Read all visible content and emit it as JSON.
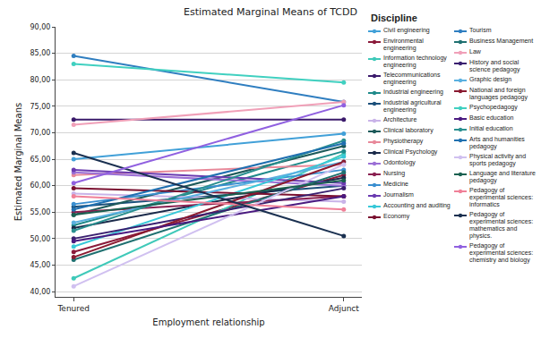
{
  "chart_data": {
    "type": "line",
    "title": "Estimated Marginal Means of TCDD",
    "x_label": "Employment relationship",
    "y_label": "Estimated Marginal Means",
    "legend_title": "Discipline",
    "legend": "right",
    "grid": true,
    "marker": "circle",
    "categories": [
      "Tenured",
      "Adjunct"
    ],
    "ylim": [
      39,
      90
    ],
    "yticks": [
      {
        "value": 40,
        "label": "40,00"
      },
      {
        "value": 45,
        "label": "45,00"
      },
      {
        "value": 50,
        "label": "50,00"
      },
      {
        "value": 55,
        "label": "55,00"
      },
      {
        "value": 60,
        "label": "60,00"
      },
      {
        "value": 65,
        "label": "65,00"
      },
      {
        "value": 70,
        "label": "70,00"
      },
      {
        "value": 75,
        "label": "75,00"
      },
      {
        "value": 80,
        "label": "80,00"
      },
      {
        "value": 85,
        "label": "85,00"
      },
      {
        "value": 90,
        "label": "90,00"
      }
    ],
    "series": [
      {
        "name": "Civil engineering",
        "color": "#41a0d8",
        "values": [
          65.0,
          69.8
        ]
      },
      {
        "name": "Environmental engineering",
        "color": "#8b1a3a",
        "values": [
          47.5,
          62.0
        ]
      },
      {
        "name": "Information technology engineering",
        "color": "#3fc9b9",
        "values": [
          42.5,
          66.0
        ]
      },
      {
        "name": "Telecommunications engineering",
        "color": "#3b1a6b",
        "values": [
          72.5,
          72.5
        ]
      },
      {
        "name": "Industrial engineering",
        "color": "#1f8a8a",
        "values": [
          52.5,
          66.5
        ]
      },
      {
        "name": "Industrial agricultural engineering",
        "color": "#1a4f7a",
        "values": [
          56.0,
          60.0
        ]
      },
      {
        "name": "Architecture",
        "color": "#c9b3e8",
        "values": [
          58.5,
          57.0
        ]
      },
      {
        "name": "Clinical laboratory",
        "color": "#1d5a5a",
        "values": [
          54.5,
          67.5
        ]
      },
      {
        "name": "Physiotherapy",
        "color": "#e8899a",
        "values": [
          62.0,
          64.0
        ]
      },
      {
        "name": "Clinical Psychology",
        "color": "#1b2a4a",
        "values": [
          52.0,
          61.5
        ]
      },
      {
        "name": "Odontology",
        "color": "#9b6fd6",
        "values": [
          62.5,
          60.0
        ]
      },
      {
        "name": "Nursing",
        "color": "#8a2050",
        "values": [
          55.0,
          58.0
        ]
      },
      {
        "name": "Medicine",
        "color": "#3a8fd0",
        "values": [
          56.5,
          63.0
        ]
      },
      {
        "name": "Journalism",
        "color": "#6a3ab0",
        "values": [
          63.0,
          60.5
        ]
      },
      {
        "name": "Accounting and auditing",
        "color": "#38c8d8",
        "values": [
          48.5,
          65.5
        ]
      },
      {
        "name": "Economy",
        "color": "#7a1030",
        "values": [
          59.5,
          58.0
        ]
      },
      {
        "name": "Tourism",
        "color": "#2f7ec0",
        "values": [
          84.5,
          75.8
        ]
      },
      {
        "name": "Business Management",
        "color": "#1f7070",
        "values": [
          46.0,
          62.5
        ]
      },
      {
        "name": "Law",
        "color": "#f0a0b8",
        "values": [
          71.5,
          75.8
        ]
      },
      {
        "name": "History and social science pedagogy",
        "color": "#3a2070",
        "values": [
          50.0,
          59.5
        ]
      },
      {
        "name": "Graphic design",
        "color": "#5ab0e0",
        "values": [
          53.0,
          64.5
        ]
      },
      {
        "name": "National and foreign languages pedagogy",
        "color": "#8a1a30",
        "values": [
          46.5,
          64.5
        ]
      },
      {
        "name": "Psychopedagogy",
        "color": "#40d0c0",
        "values": [
          83.0,
          79.5
        ]
      },
      {
        "name": "Basic education",
        "color": "#4a1a80",
        "values": [
          49.5,
          58.0
        ]
      },
      {
        "name": "Initial education",
        "color": "#2a9090",
        "values": [
          51.5,
          68.5
        ]
      },
      {
        "name": "Arts and humanities pedagogy",
        "color": "#2070b0",
        "values": [
          55.5,
          68.0
        ]
      },
      {
        "name": "Physical activity and sports pedagogy",
        "color": "#d0c0f0",
        "values": [
          41.0,
          64.0
        ]
      },
      {
        "name": "Language and literature pedagogy",
        "color": "#1a6050",
        "values": [
          54.5,
          61.0
        ]
      },
      {
        "name": "Pedagogy of experimental sciences: informatics",
        "color": "#f08098",
        "values": [
          58.0,
          55.5
        ]
      },
      {
        "name": "Pedagogy of experimental sciences: mathematics and physics.",
        "color": "#1a3050",
        "values": [
          66.2,
          50.5
        ]
      },
      {
        "name": "Pedagogy of experimental sciences: chemistry and biology",
        "color": "#9060e0",
        "values": [
          60.5,
          75.2
        ]
      }
    ]
  }
}
